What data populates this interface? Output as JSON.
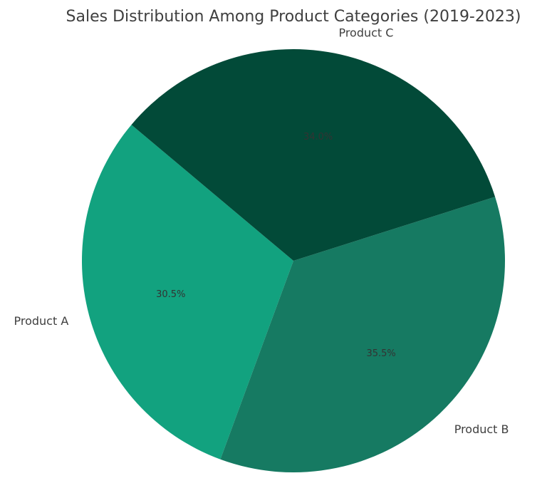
{
  "chart_data": {
    "type": "pie",
    "title": "Sales Distribution Among Product Categories (2019-2023)",
    "categories": [
      "Product A",
      "Product B",
      "Product C"
    ],
    "values": [
      30.5,
      35.5,
      34.0
    ],
    "labels": [
      "30.5%",
      "35.5%",
      "34.0%"
    ],
    "colors": [
      "#12a27f",
      "#167a62",
      "#024a38"
    ],
    "start_angle_deg": 140,
    "direction": "counterclockwise",
    "legend": "none",
    "xlabel": "",
    "ylabel": ""
  }
}
